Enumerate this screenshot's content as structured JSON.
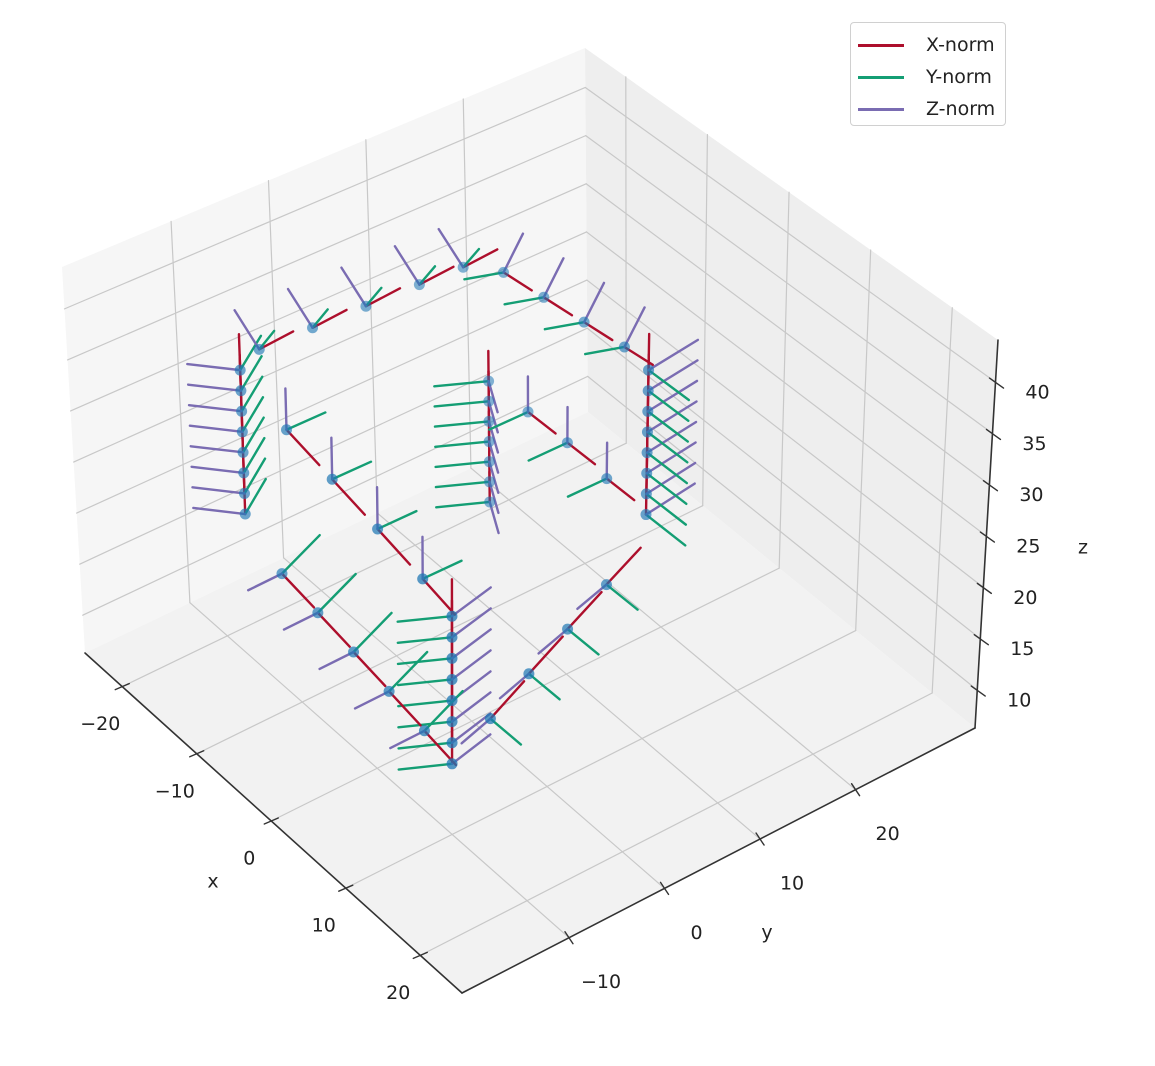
{
  "chart_data": {
    "type": "quiver3d",
    "grid": true,
    "axes": {
      "x": {
        "label": "x",
        "range": [
          -25,
          25.6
        ],
        "ticks": [
          -20,
          -10,
          0,
          10,
          20
        ],
        "tick_labels": [
          "−20",
          "−10",
          "0",
          "10",
          "20"
        ]
      },
      "y": {
        "label": "y",
        "range": [
          -21.2,
          32.5
        ],
        "ticks": [
          -10,
          0,
          10,
          20
        ],
        "tick_labels": [
          "−10",
          "0",
          "10",
          "20"
        ]
      },
      "z": {
        "label": "z",
        "range": [
          6.3,
          44.1
        ],
        "ticks": [
          10,
          15,
          20,
          25,
          30,
          35,
          40
        ],
        "tick_labels": [
          "10",
          "15",
          "20",
          "25",
          "30",
          "35",
          "40"
        ]
      }
    },
    "legend": {
      "position": "upper right",
      "entries": [
        {
          "name": "X-norm",
          "color": "#ad0f2c"
        },
        {
          "name": "Y-norm",
          "color": "#149e74"
        },
        {
          "name": "Z-norm",
          "color": "#7a6cb2"
        }
      ]
    },
    "point_color": "#1f77b4",
    "groups": [
      {
        "points": [
          [
            -13,
            -13,
            24
          ],
          [
            -13,
            -13,
            26
          ],
          [
            -13,
            -13,
            28
          ],
          [
            -13,
            -13,
            30
          ],
          [
            -13,
            -13,
            32
          ],
          [
            -13,
            -13,
            34
          ],
          [
            -13,
            -13,
            36
          ],
          [
            -13,
            -13,
            38
          ]
        ],
        "x_norm": [
          0,
          0,
          3.5
        ],
        "y_norm": [
          -1,
          3,
          1.5
        ],
        "z_norm": [
          -3,
          -3,
          0
        ]
      },
      {
        "points": [
          [
            10,
            10,
            28
          ],
          [
            10,
            10,
            30
          ],
          [
            10,
            10,
            32
          ],
          [
            10,
            10,
            34
          ],
          [
            10,
            10,
            36
          ],
          [
            10,
            10,
            38
          ],
          [
            10,
            10,
            40
          ],
          [
            10,
            10,
            42
          ]
        ],
        "x_norm": [
          0,
          0,
          3.5
        ],
        "y_norm": [
          5,
          0,
          0
        ],
        "z_norm": [
          0,
          5,
          0.8
        ]
      },
      {
        "points": [
          [
            -10,
            10,
            17
          ],
          [
            -10,
            10,
            19
          ],
          [
            -10,
            10,
            21
          ],
          [
            -10,
            10,
            23
          ],
          [
            -10,
            10,
            25
          ],
          [
            -10,
            10,
            27
          ],
          [
            -10,
            10,
            29
          ]
        ],
        "x_norm": [
          0,
          0,
          3
        ],
        "y_norm": [
          -2,
          -4,
          0
        ],
        "z_norm": [
          0.5,
          0.5,
          -3
        ]
      },
      {
        "points": [
          [
            10,
            -10,
            13
          ],
          [
            10,
            -10,
            15
          ],
          [
            10,
            -10,
            17
          ],
          [
            10,
            -10,
            19
          ],
          [
            10,
            -10,
            21
          ],
          [
            10,
            -10,
            23
          ],
          [
            10,
            -10,
            25
          ],
          [
            10,
            -10,
            27
          ]
        ],
        "x_norm": [
          0,
          0,
          3.5
        ],
        "y_norm": [
          -2,
          -4,
          0
        ],
        "z_norm": [
          0,
          4,
          1
        ]
      },
      {
        "points": [
          [
            -13,
            -11,
            39.2
          ],
          [
            -12.4,
            -6,
            39.6
          ],
          [
            -11.8,
            -1,
            40
          ],
          [
            -11.2,
            4,
            40.4
          ],
          [
            -10.6,
            8,
            40.8
          ]
        ],
        "x_norm": [
          0,
          3.5,
          0.3
        ],
        "y_norm": [
          2,
          0,
          3
        ],
        "z_norm": [
          -3,
          0,
          2
        ]
      },
      {
        "points": [
          [
            -8,
            10,
            41
          ],
          [
            -3,
            10,
            41.5
          ],
          [
            2,
            10,
            42
          ],
          [
            7,
            10,
            42.5
          ]
        ],
        "x_norm": [
          3.5,
          0,
          0.3
        ],
        "y_norm": [
          0,
          -4,
          1
        ],
        "z_norm": [
          0,
          2,
          3
        ]
      },
      {
        "points": [
          [
            -8,
            -12.4,
            35
          ],
          [
            -3,
            -11.8,
            33
          ],
          [
            2,
            -11.2,
            31
          ],
          [
            7,
            -10.6,
            29
          ]
        ],
        "x_norm": [
          3.5,
          0.5,
          -1.5
        ],
        "y_norm": [
          0,
          4,
          0
        ],
        "z_norm": [
          0,
          0,
          4
        ]
      },
      {
        "points": [
          [
            -5,
            10,
            29
          ],
          [
            0,
            10,
            29
          ],
          [
            5,
            10,
            28.5
          ]
        ],
        "x_norm": [
          3.5,
          0,
          0
        ],
        "y_norm": [
          0,
          -4,
          0
        ],
        "z_norm": [
          0,
          0,
          3.5
        ]
      },
      {
        "points": [
          [
            -9,
            -12.5,
            20.5
          ],
          [
            -5,
            -12,
            19
          ],
          [
            -1,
            -11.5,
            17.5
          ],
          [
            3,
            -11,
            16
          ],
          [
            7,
            -10.5,
            14.5
          ]
        ],
        "x_norm": [
          3.5,
          0.5,
          -1.3
        ],
        "y_norm": [
          0,
          4,
          2
        ],
        "z_norm": [
          -2,
          -2,
          -2
        ]
      },
      {
        "points": [
          [
            10,
            -6,
            15.5
          ],
          [
            10,
            -2,
            18
          ],
          [
            10,
            2,
            20.5
          ],
          [
            10,
            6,
            23
          ]
        ],
        "x_norm": [
          0,
          3.5,
          2
        ],
        "y_norm": [
          4,
          0,
          0
        ],
        "z_norm": [
          0,
          -3,
          -1
        ]
      }
    ]
  }
}
